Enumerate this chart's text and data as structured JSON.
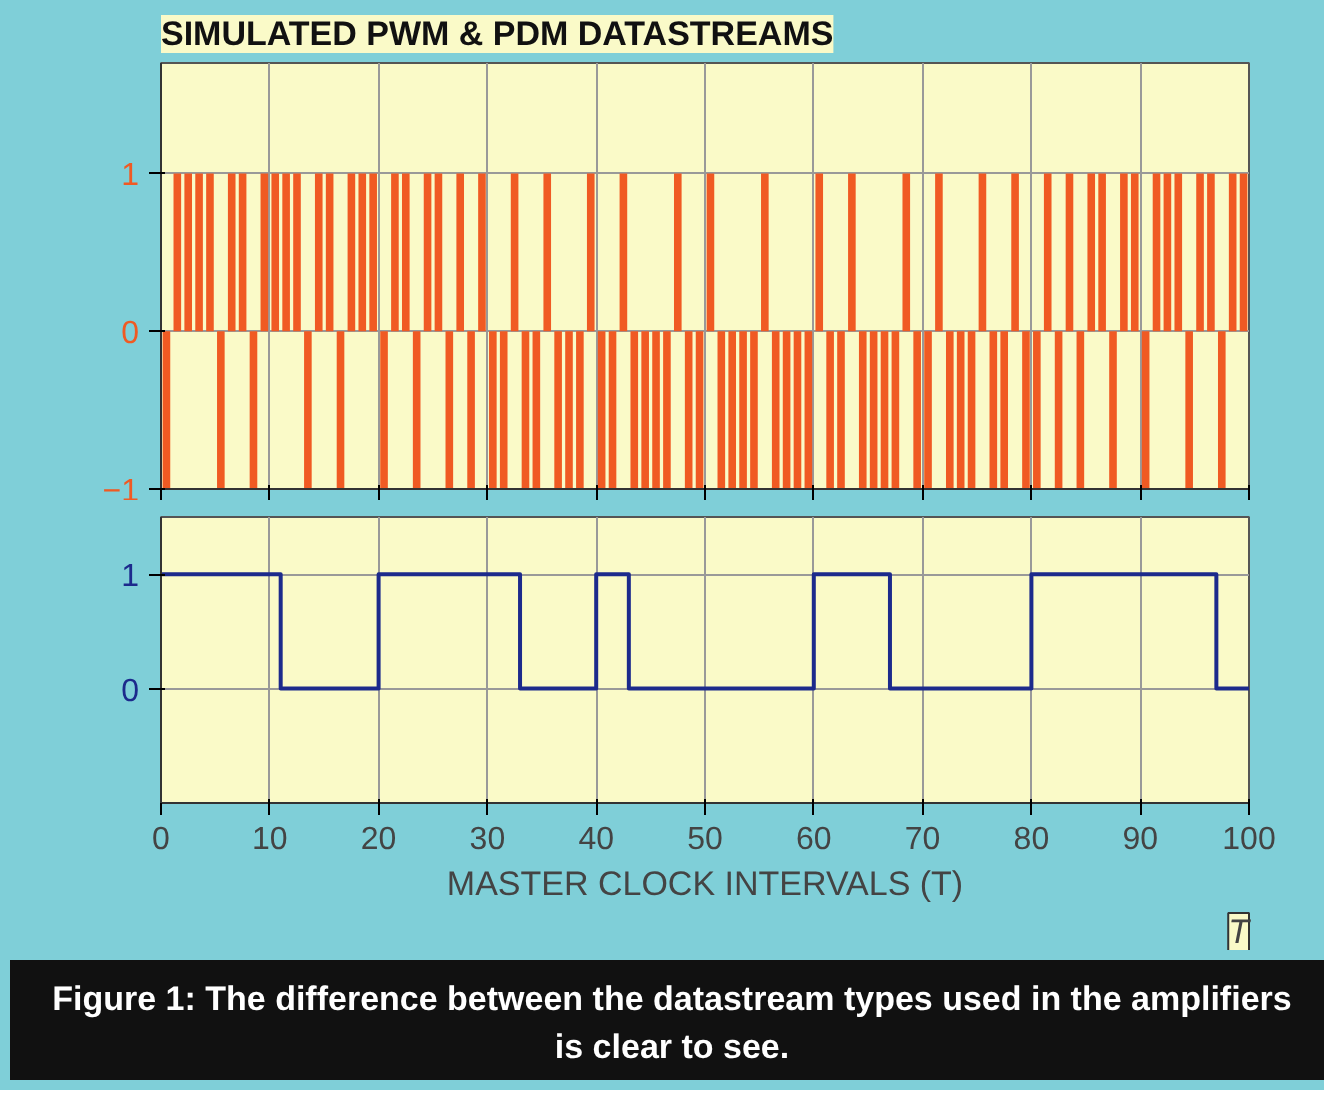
{
  "chart_data": [
    {
      "type": "bar",
      "title": "SIMULATED PWM & PDM DATASTREAMS",
      "xlim": [
        0,
        100
      ],
      "xticks": [
        0,
        10,
        20,
        30,
        40,
        50,
        60,
        70,
        80,
        90,
        100
      ],
      "ylim": [
        -1,
        1.7
      ],
      "yticks": [
        -1,
        0,
        1
      ],
      "tick_labels": "y",
      "grid": true,
      "x": [
        0.5,
        1.5,
        2.5,
        3.5,
        4.5,
        5.5,
        6.5,
        7.5,
        8.5,
        9.5,
        10.5,
        11.5,
        12.5,
        13.5,
        14.5,
        15.5,
        16.5,
        17.5,
        18.5,
        19.5,
        20.5,
        21.5,
        22.5,
        23.5,
        24.5,
        25.5,
        26.5,
        27.5,
        28.5,
        29.5,
        30.5,
        31.5,
        32.5,
        33.5,
        34.5,
        35.5,
        36.5,
        37.5,
        38.5,
        39.5,
        40.5,
        41.5,
        42.5,
        43.5,
        44.5,
        45.5,
        46.5,
        47.5,
        48.5,
        49.5,
        50.5,
        51.5,
        52.5,
        53.5,
        54.5,
        55.5,
        56.5,
        57.5,
        58.5,
        59.5,
        60.5,
        61.5,
        62.5,
        63.5,
        64.5,
        65.5,
        66.5,
        67.5,
        68.5,
        69.5,
        70.5,
        71.5,
        72.5,
        73.5,
        74.5,
        75.5,
        76.5,
        77.5,
        78.5,
        79.5,
        80.5,
        81.5,
        82.5,
        83.5,
        84.5,
        85.5,
        86.5,
        87.5,
        88.5,
        89.5,
        90.5,
        91.5,
        92.5,
        93.5,
        94.5,
        95.5,
        96.5,
        97.5,
        98.5,
        99.5
      ],
      "series": [
        {
          "color": "#f05a23",
          "values": [
            -1,
            1,
            1,
            1,
            1,
            -1,
            1,
            1,
            -1,
            1,
            1,
            1,
            1,
            -1,
            1,
            1,
            -1,
            1,
            1,
            1,
            -1,
            1,
            1,
            -1,
            1,
            1,
            -1,
            1,
            -1,
            1,
            -1,
            -1,
            1,
            -1,
            -1,
            1,
            -1,
            -1,
            -1,
            1,
            -1,
            -1,
            1,
            -1,
            -1,
            -1,
            -1,
            1,
            -1,
            -1,
            1,
            -1,
            -1,
            -1,
            -1,
            1,
            -1,
            -1,
            -1,
            -1,
            1,
            -1,
            -1,
            1,
            -1,
            -1,
            -1,
            -1,
            1,
            -1,
            -1,
            1,
            -1,
            -1,
            -1,
            1,
            -1,
            -1,
            1,
            -1,
            -1,
            1,
            -1,
            1,
            -1,
            1,
            1,
            -1,
            1,
            1,
            -1,
            1,
            1,
            1,
            -1,
            1,
            1,
            -1,
            1,
            1
          ]
        }
      ]
    },
    {
      "type": "step",
      "xlabel": "MASTER CLOCK INTERVALS (T)",
      "xlim": [
        0,
        100
      ],
      "xticks": [
        0,
        10,
        20,
        30,
        40,
        50,
        60,
        70,
        80,
        90,
        100
      ],
      "ylim": [
        -1,
        1.5
      ],
      "yticks": [
        0,
        1
      ],
      "grid": true,
      "annotations": [
        "T",
        "Figure 1: The difference between the datastream types used in the amplifiers is clear to see."
      ],
      "series": [
        {
          "color": "#1c2a8c",
          "x": [
            0,
            11,
            20,
            33,
            40,
            43,
            60,
            67,
            80,
            97,
            100
          ],
          "values": [
            1,
            0,
            1,
            0,
            1,
            0,
            1,
            0,
            1,
            0,
            0
          ]
        }
      ]
    }
  ]
}
